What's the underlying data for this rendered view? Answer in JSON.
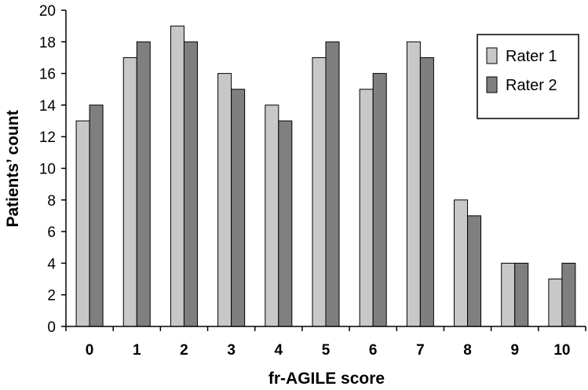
{
  "chart_data": {
    "type": "bar",
    "title": "",
    "xlabel": "fr-AGILE score",
    "ylabel": "Patients’ count",
    "categories": [
      "0",
      "1",
      "2",
      "3",
      "4",
      "5",
      "6",
      "7",
      "8",
      "9",
      "10"
    ],
    "series": [
      {
        "name": "Rater 1",
        "color": "#c8c8c8",
        "values": [
          13,
          17,
          19,
          16,
          14,
          17,
          15,
          18,
          8,
          4,
          3
        ]
      },
      {
        "name": "Rater 2",
        "color": "#7f7f7f",
        "values": [
          14,
          18,
          18,
          15,
          13,
          18,
          16,
          17,
          7,
          4,
          4
        ]
      }
    ],
    "ylim": [
      0,
      20
    ],
    "yticks": [
      0,
      2,
      4,
      6,
      8,
      10,
      12,
      14,
      16,
      18,
      20
    ],
    "grid": false,
    "legend_position": "top-right"
  }
}
